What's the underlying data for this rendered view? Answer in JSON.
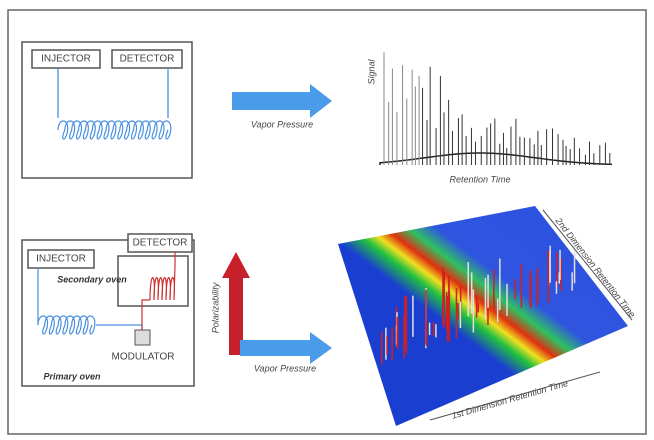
{
  "top": {
    "injector": "INJECTOR",
    "detector": "DETECTOR",
    "arrow_label": "Vapor Pressure",
    "y_axis": "Signal",
    "x_axis": "Retention Time"
  },
  "bottom": {
    "injector": "INJECTOR",
    "detector": "DETECTOR",
    "secondary_oven": "Secondary oven",
    "modulator": "MODULATOR",
    "primary_oven": "Primary oven",
    "vertical_arrow_label": "Polarizability",
    "arrow_label": "Vapor Pressure",
    "axis_2nd": "2nd Dimension Retention Time",
    "axis_1st": "1st Dimension Retention Time"
  }
}
